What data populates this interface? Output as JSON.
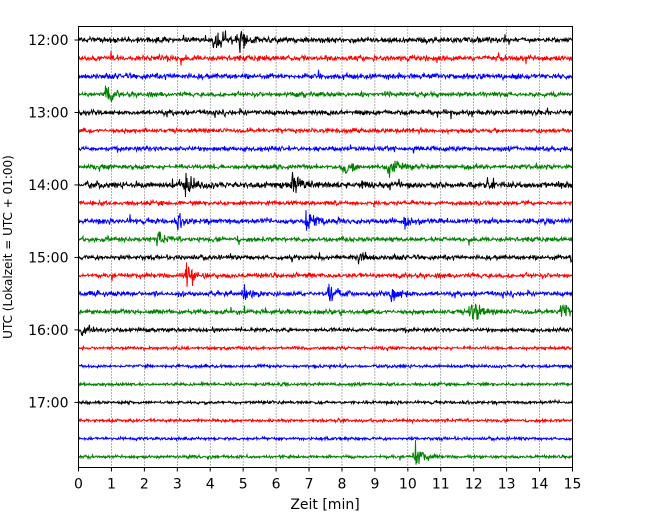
{
  "chart_data": {
    "type": "line",
    "title": "",
    "xlabel": "Zeit  [min]",
    "ylabel": "UTC (Lokalzeit = UTC + 01:00)",
    "xlim": [
      0,
      15
    ],
    "x_ticks": [
      "0",
      "1",
      "2",
      "3",
      "4",
      "5",
      "6",
      "7",
      "8",
      "9",
      "10",
      "11",
      "12",
      "13",
      "14",
      "15"
    ],
    "y_ticks": [
      "12:00",
      "13:00",
      "14:00",
      "15:00",
      "16:00",
      "17:00"
    ],
    "grid": "vertical dotted",
    "trace_colors": [
      "#000000",
      "#ff0000",
      "#0000ff",
      "#008000"
    ],
    "trace_start_times": [
      "12:00",
      "12:15",
      "12:30",
      "12:45",
      "13:00",
      "13:15",
      "13:30",
      "13:45",
      "14:00",
      "14:15",
      "14:30",
      "14:45",
      "15:00",
      "15:15",
      "15:30",
      "15:45",
      "16:00",
      "16:15",
      "16:30",
      "16:45",
      "17:00",
      "17:15",
      "17:30",
      "17:45"
    ],
    "trace_activity": [
      0.8,
      0.8,
      0.8,
      0.6,
      0.7,
      0.5,
      0.6,
      0.6,
      0.9,
      0.5,
      0.7,
      0.6,
      0.6,
      0.6,
      0.6,
      0.6,
      0.4,
      0.2,
      0.2,
      0.2,
      0.2,
      0.2,
      0.2,
      0.2
    ],
    "events": [
      {
        "trace": "12:00",
        "t": 4.1,
        "amp": 14
      },
      {
        "trace": "12:00",
        "t": 4.9,
        "amp": 13
      },
      {
        "trace": "12:45",
        "t": 0.8,
        "amp": 10
      },
      {
        "trace": "13:45",
        "t": 8.0,
        "amp": 7
      },
      {
        "trace": "13:45",
        "t": 9.4,
        "amp": 11
      },
      {
        "trace": "14:00",
        "t": 3.25,
        "amp": 13
      },
      {
        "trace": "14:00",
        "t": 6.5,
        "amp": 14
      },
      {
        "trace": "14:00",
        "t": 8.6,
        "amp": 7
      },
      {
        "trace": "14:30",
        "t": 3.0,
        "amp": 6
      },
      {
        "trace": "14:30",
        "t": 6.9,
        "amp": 14
      },
      {
        "trace": "14:30",
        "t": 9.9,
        "amp": 6
      },
      {
        "trace": "14:45",
        "t": 2.4,
        "amp": 6
      },
      {
        "trace": "15:00",
        "t": 8.5,
        "amp": 7
      },
      {
        "trace": "15:00",
        "t": 14.95,
        "amp": 6
      },
      {
        "trace": "15:15",
        "t": 3.25,
        "amp": 12
      },
      {
        "trace": "15:30",
        "t": 5.0,
        "amp": 8
      },
      {
        "trace": "15:30",
        "t": 7.6,
        "amp": 11
      },
      {
        "trace": "15:30",
        "t": 9.5,
        "amp": 12
      },
      {
        "trace": "15:45",
        "t": 11.9,
        "amp": 15
      },
      {
        "trace": "15:45",
        "t": 14.6,
        "amp": 10
      },
      {
        "trace": "16:00",
        "t": 0.1,
        "amp": 5
      },
      {
        "trace": "17:45",
        "t": 10.2,
        "amp": 14
      }
    ]
  }
}
